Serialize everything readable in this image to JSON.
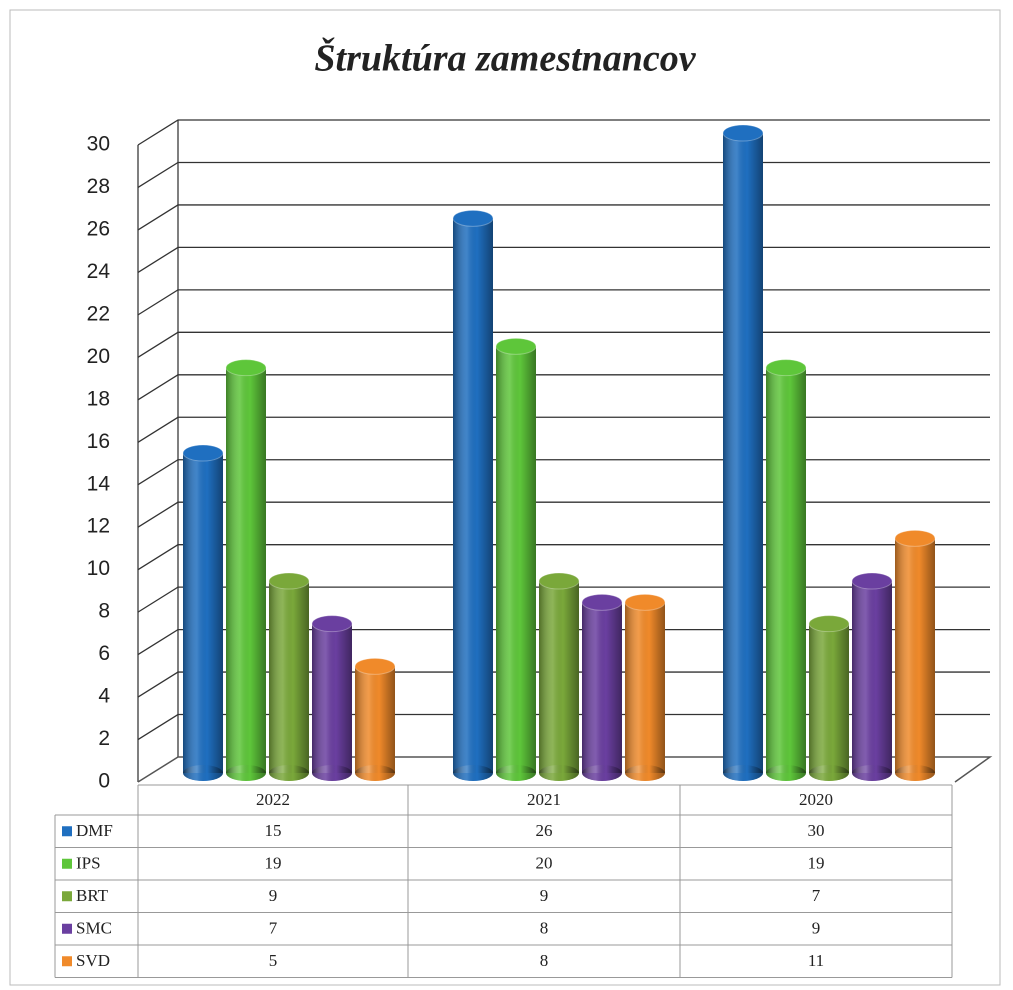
{
  "chart_data": {
    "type": "bar",
    "title": "Štruktúra zamestnancov",
    "categories": [
      "2022",
      "2021",
      "2020"
    ],
    "series": [
      {
        "name": "DMF",
        "color": "#1f6fc0",
        "values": [
          15,
          26,
          30
        ]
      },
      {
        "name": "IPS",
        "color": "#5ec63a",
        "values": [
          19,
          20,
          19
        ]
      },
      {
        "name": "BRT",
        "color": "#7aa83a",
        "values": [
          9,
          9,
          7
        ]
      },
      {
        "name": "SMC",
        "color": "#6a3fa0",
        "values": [
          7,
          8,
          9
        ]
      },
      {
        "name": "SVD",
        "color": "#f08a2a",
        "values": [
          5,
          8,
          11
        ]
      }
    ],
    "ylim": [
      0,
      30
    ],
    "yticks": [
      0,
      2,
      4,
      6,
      8,
      10,
      12,
      14,
      16,
      18,
      20,
      22,
      24,
      26,
      28,
      30
    ],
    "grid": true
  }
}
